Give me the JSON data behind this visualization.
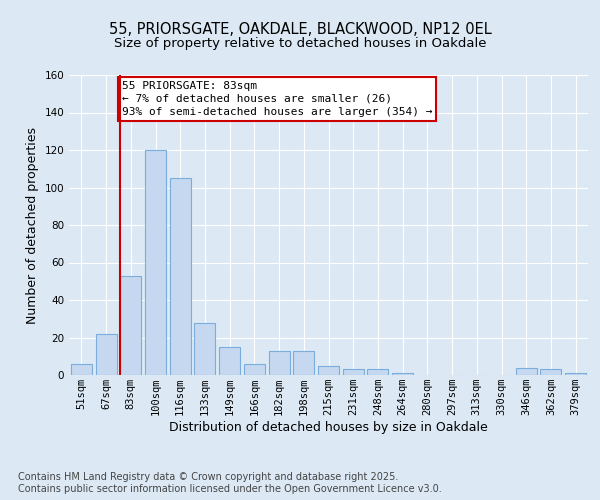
{
  "title1": "55, PRIORSGATE, OAKDALE, BLACKWOOD, NP12 0EL",
  "title2": "Size of property relative to detached houses in Oakdale",
  "xlabel": "Distribution of detached houses by size in Oakdale",
  "ylabel": "Number of detached properties",
  "categories": [
    "51sqm",
    "67sqm",
    "83sqm",
    "100sqm",
    "116sqm",
    "133sqm",
    "149sqm",
    "166sqm",
    "182sqm",
    "198sqm",
    "215sqm",
    "231sqm",
    "248sqm",
    "264sqm",
    "280sqm",
    "297sqm",
    "313sqm",
    "330sqm",
    "346sqm",
    "362sqm",
    "379sqm"
  ],
  "values": [
    6,
    22,
    53,
    120,
    105,
    28,
    15,
    6,
    13,
    13,
    5,
    3,
    3,
    1,
    0,
    0,
    0,
    0,
    4,
    3,
    1
  ],
  "bar_color": "#c5d8f0",
  "bar_edge_color": "#7aacdc",
  "red_line_index": 2,
  "annotation_text": "55 PRIORSGATE: 83sqm\n← 7% of detached houses are smaller (26)\n93% of semi-detached houses are larger (354) →",
  "annotation_box_color": "#ffffff",
  "annotation_box_edge": "#cc0000",
  "ylim": [
    0,
    160
  ],
  "yticks": [
    0,
    20,
    40,
    60,
    80,
    100,
    120,
    140,
    160
  ],
  "background_color": "#dce9f5",
  "plot_bg_color": "#dce9f5",
  "grid_color": "#ffffff",
  "footer": "Contains HM Land Registry data © Crown copyright and database right 2025.\nContains public sector information licensed under the Open Government Licence v3.0.",
  "title1_fontsize": 10.5,
  "title2_fontsize": 9.5,
  "axis_label_fontsize": 9,
  "tick_fontsize": 7.5,
  "footer_fontsize": 7,
  "annotation_fontsize": 8
}
